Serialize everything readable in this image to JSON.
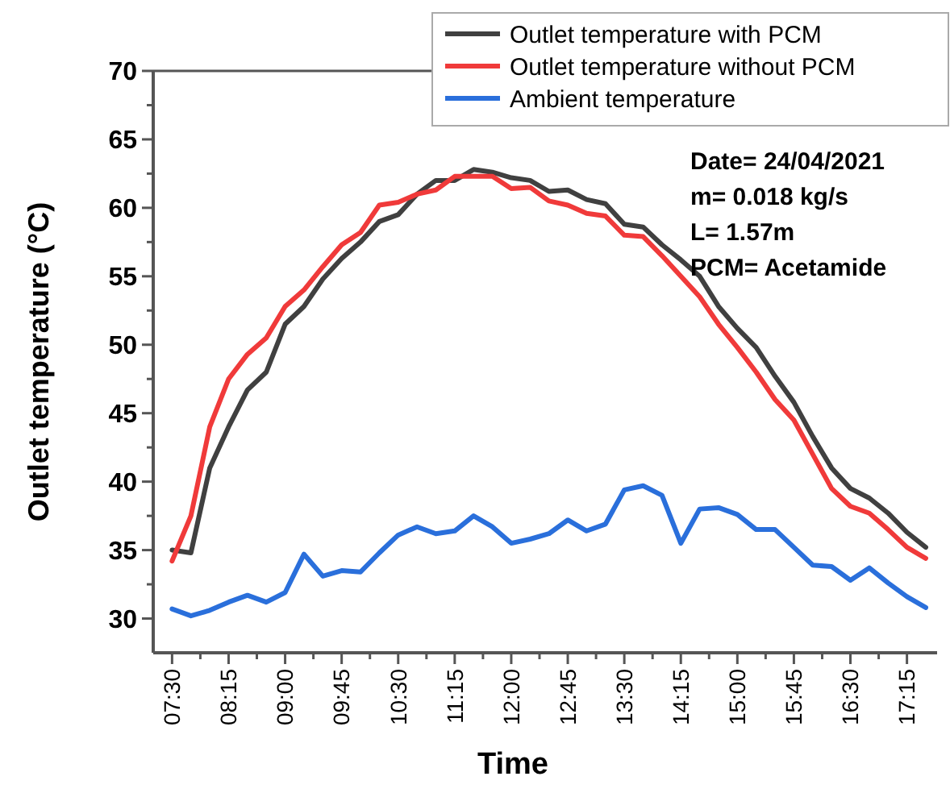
{
  "chart_data": {
    "type": "line",
    "xlabel": "Time",
    "ylabel": "Outlet temperature (°C)",
    "x": [
      7.5,
      7.75,
      8,
      8.25,
      8.5,
      8.75,
      9,
      9.25,
      9.5,
      9.75,
      10,
      10.25,
      10.5,
      10.75,
      11,
      11.25,
      11.5,
      11.75,
      12,
      12.25,
      12.5,
      12.75,
      13,
      13.25,
      13.5,
      13.75,
      14,
      14.25,
      14.5,
      14.75,
      15,
      15.25,
      15.5,
      15.75,
      16,
      16.25,
      16.5,
      16.75,
      17,
      17.25,
      17.5
    ],
    "series": [
      {
        "name": "Outlet temperature with PCM",
        "color": "#404040",
        "values": [
          35.0,
          34.8,
          41,
          44,
          46.7,
          48,
          51.5,
          52.8,
          54.8,
          56.3,
          57.5,
          59.0,
          59.5,
          61.0,
          62.0,
          62.0,
          62.8,
          62.6,
          62.2,
          62.0,
          61.2,
          61.3,
          60.6,
          60.3,
          58.8,
          58.6,
          57.3,
          56.2,
          55.0,
          52.8,
          51.2,
          49.8,
          47.7,
          45.8,
          43.3,
          41.0,
          39.5,
          38.8,
          37.7,
          36.3,
          35.2
        ]
      },
      {
        "name": "Outlet temperature without PCM",
        "color": "#f03a3a",
        "values": [
          34.2,
          37.5,
          44,
          47.5,
          49.3,
          50.5,
          52.8,
          54,
          55.7,
          57.3,
          58.2,
          60.2,
          60.4,
          61.0,
          61.3,
          62.3,
          62.3,
          62.3,
          61.4,
          61.5,
          60.5,
          60.2,
          59.6,
          59.4,
          58.0,
          57.9,
          56.5,
          55.0,
          53.5,
          51.5,
          49.8,
          48.0,
          46.0,
          44.5,
          42.0,
          39.5,
          38.2,
          37.7,
          36.5,
          35.2,
          34.4
        ]
      },
      {
        "name": "Ambient temperature",
        "color": "#2a6fdb",
        "values": [
          30.7,
          30.2,
          30.6,
          31.2,
          31.7,
          31.2,
          31.9,
          34.7,
          33.1,
          33.5,
          33.4,
          34.8,
          36.1,
          36.7,
          36.2,
          36.4,
          37.5,
          36.7,
          35.5,
          35.8,
          36.2,
          37.2,
          36.4,
          36.9,
          39.4,
          39.7,
          39.0,
          35.5,
          38.0,
          38.1,
          37.6,
          36.5,
          36.5,
          35.2,
          33.9,
          33.8,
          32.8,
          33.7,
          32.6,
          31.6,
          30.8
        ]
      }
    ],
    "xlim": [
      7.25,
      17.65
    ],
    "xticks": [
      {
        "value": 7.5,
        "label": "07:30"
      },
      {
        "value": 7.875,
        "label": null
      },
      {
        "value": 8.25,
        "label": "08:15"
      },
      {
        "value": 8.625,
        "label": null
      },
      {
        "value": 9,
        "label": "09:00"
      },
      {
        "value": 9.375,
        "label": null
      },
      {
        "value": 9.75,
        "label": "09:45"
      },
      {
        "value": 10.125,
        "label": null
      },
      {
        "value": 10.5,
        "label": "10:30"
      },
      {
        "value": 10.875,
        "label": null
      },
      {
        "value": 11.25,
        "label": "11:15"
      },
      {
        "value": 11.625,
        "label": null
      },
      {
        "value": 12,
        "label": "12:00"
      },
      {
        "value": 12.375,
        "label": null
      },
      {
        "value": 12.75,
        "label": "12:45"
      },
      {
        "value": 13.125,
        "label": null
      },
      {
        "value": 13.5,
        "label": "13:30"
      },
      {
        "value": 13.875,
        "label": null
      },
      {
        "value": 14.25,
        "label": "14:15"
      },
      {
        "value": 14.625,
        "label": null
      },
      {
        "value": 15,
        "label": "15:00"
      },
      {
        "value": 15.375,
        "label": null
      },
      {
        "value": 15.75,
        "label": "15:45"
      },
      {
        "value": 16.125,
        "label": null
      },
      {
        "value": 16.5,
        "label": "16:30"
      },
      {
        "value": 16.875,
        "label": null
      },
      {
        "value": 17.25,
        "label": "17:15"
      }
    ],
    "ylim": [
      27.5,
      70
    ],
    "yticks": [
      30,
      {
        "value": 32.5,
        "label": null
      },
      35,
      {
        "value": 37.5,
        "label": null
      },
      40,
      {
        "value": 42.5,
        "label": null
      },
      45,
      {
        "value": 47.5,
        "label": null
      },
      50,
      {
        "value": 52.5,
        "label": null
      },
      55,
      {
        "value": 57.5,
        "label": null
      },
      60,
      {
        "value": 62.5,
        "label": null
      },
      65,
      {
        "value": 67.5,
        "label": null
      },
      70
    ],
    "annotations": [
      "Date= 24/04/2021",
      "m= 0.018 kg/s",
      "L= 1.57m",
      "PCM= Acetamide"
    ],
    "legend": "top right",
    "grid": false,
    "marker": "none",
    "line_style": "solid"
  }
}
